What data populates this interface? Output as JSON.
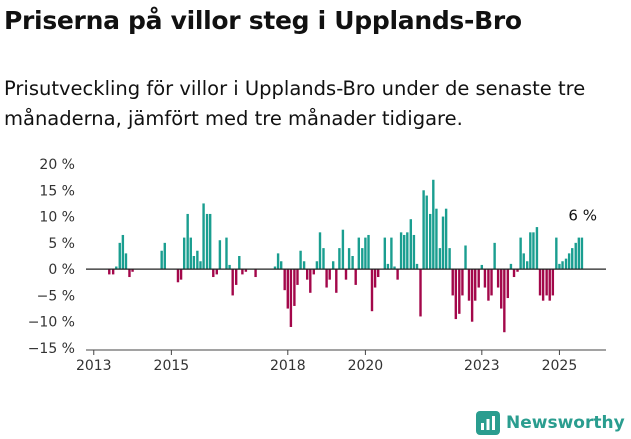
{
  "title": "Priserna på villor steg i Upplands-Bro",
  "subtitle": "Prisutveckling för villor i Upplands-Bro under de senaste tre månaderna, jämfört med tre månader tidigare.",
  "brand": {
    "name": "Newsworthy",
    "icon": "newsworthy-logo-icon",
    "color": "#2a9d8f"
  },
  "colors": {
    "positive": "#1a9e90",
    "negative": "#a3074a",
    "zero_line": "#222222"
  },
  "chart_data": {
    "type": "bar",
    "title": "Priserna på villor steg i Upplands-Bro",
    "xlabel": "",
    "ylabel": "",
    "ylim": [
      -15,
      20
    ],
    "yticks": [
      20,
      15,
      10,
      5,
      0,
      -5,
      -10,
      -15
    ],
    "ytick_labels": [
      "20 %",
      "15 %",
      "10 %",
      "5 %",
      "0 %",
      "−5 %",
      "−10 %",
      "−15 %"
    ],
    "xticks": [
      2013,
      2015,
      2018,
      2020,
      2023,
      2025
    ],
    "xlim": [
      2012.8,
      2026.2
    ],
    "grid": false,
    "annotation": {
      "text": "6 %",
      "x": 2025.6,
      "y": 6
    },
    "x": [
      2013.4,
      2013.5,
      2013.58,
      2013.67,
      2013.75,
      2013.83,
      2013.92,
      2014.0,
      2014.75,
      2014.83,
      2015.17,
      2015.25,
      2015.33,
      2015.42,
      2015.5,
      2015.58,
      2015.67,
      2015.75,
      2015.83,
      2015.92,
      2016.0,
      2016.08,
      2016.17,
      2016.25,
      2016.42,
      2016.5,
      2016.58,
      2016.67,
      2016.75,
      2016.83,
      2016.92,
      2017.17,
      2017.67,
      2017.75,
      2017.83,
      2017.92,
      2018.0,
      2018.08,
      2018.17,
      2018.25,
      2018.33,
      2018.42,
      2018.5,
      2018.58,
      2018.67,
      2018.75,
      2018.83,
      2018.92,
      2019.0,
      2019.08,
      2019.17,
      2019.25,
      2019.33,
      2019.42,
      2019.5,
      2019.58,
      2019.67,
      2019.75,
      2019.83,
      2019.92,
      2020.0,
      2020.08,
      2020.17,
      2020.25,
      2020.33,
      2020.5,
      2020.58,
      2020.67,
      2020.75,
      2020.83,
      2020.92,
      2021.0,
      2021.08,
      2021.17,
      2021.25,
      2021.33,
      2021.42,
      2021.5,
      2021.58,
      2021.67,
      2021.75,
      2021.83,
      2021.92,
      2022.0,
      2022.08,
      2022.17,
      2022.25,
      2022.33,
      2022.42,
      2022.5,
      2022.58,
      2022.67,
      2022.75,
      2022.83,
      2022.92,
      2023.0,
      2023.08,
      2023.17,
      2023.25,
      2023.33,
      2023.42,
      2023.5,
      2023.58,
      2023.67,
      2023.75,
      2023.83,
      2023.92,
      2024.0,
      2024.08,
      2024.17,
      2024.25,
      2024.33,
      2024.42,
      2024.5,
      2024.58,
      2024.67,
      2024.75,
      2024.83,
      2024.92,
      2025.0,
      2025.08,
      2025.17,
      2025.25,
      2025.33,
      2025.42,
      2025.5,
      2025.58
    ],
    "values": [
      -1,
      -1,
      0.5,
      5,
      6.5,
      3,
      -1.5,
      -0.5,
      3.5,
      5,
      -2.5,
      -2,
      6,
      10.5,
      6,
      2.5,
      3.5,
      1.5,
      12.5,
      10.5,
      10.5,
      -1.5,
      -1,
      5.5,
      6,
      0.8,
      -5,
      -3,
      2.5,
      -1,
      -0.5,
      -1.5,
      0.5,
      3,
      1.5,
      -4,
      -7.5,
      -11,
      -7,
      -3,
      3.5,
      1.5,
      -2,
      -4.5,
      -1,
      1.5,
      7,
      4,
      -3.5,
      -2,
      1.5,
      -4.5,
      4,
      7.5,
      -2,
      4,
      2.5,
      -3,
      6,
      4,
      6,
      6.5,
      -8,
      -3.5,
      -1.5,
      6,
      1,
      6,
      0.5,
      -2,
      7,
      6.5,
      7,
      9.5,
      6.5,
      1,
      -9,
      15,
      14,
      10.5,
      17,
      11.5,
      4,
      10,
      11.5,
      4,
      -5,
      -9.5,
      -8.5,
      -5,
      4.5,
      -6,
      -10,
      -6,
      -3.5,
      0.8,
      -3.5,
      -6,
      -5,
      5,
      -3.5,
      -7.5,
      -12,
      -5.5,
      1,
      -1.5,
      -0.5,
      6,
      3,
      1.5,
      7,
      7,
      8,
      -5,
      -6,
      -5,
      -6,
      -5,
      6,
      1,
      1.5,
      2,
      3,
      4,
      5,
      6,
      6
    ]
  }
}
